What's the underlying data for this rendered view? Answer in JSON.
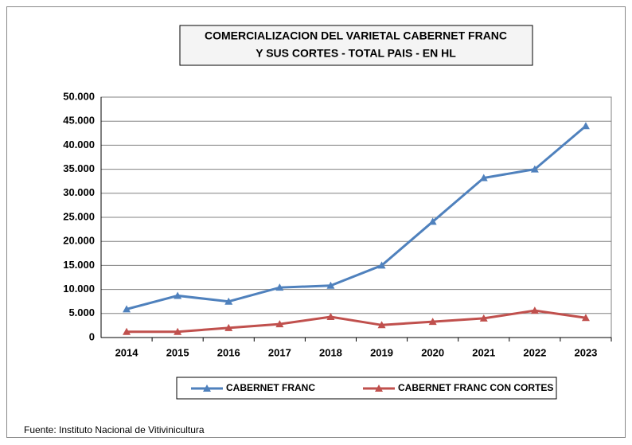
{
  "chart_data": {
    "type": "line",
    "title": [
      "COMERCIALIZACION DEL VARIETAL CABERNET FRANC",
      "Y SUS CORTES - TOTAL PAIS - EN HL"
    ],
    "categories": [
      "2014",
      "2015",
      "2016",
      "2017",
      "2018",
      "2019",
      "2020",
      "2021",
      "2022",
      "2023"
    ],
    "series": [
      {
        "name": "CABERNET FRANC",
        "color": "#4f81bd",
        "values": [
          5900,
          8700,
          7500,
          10400,
          10800,
          15000,
          24100,
          33200,
          35000,
          44000
        ]
      },
      {
        "name": "CABERNET FRANC CON CORTES",
        "color": "#c0504d",
        "values": [
          1200,
          1200,
          2000,
          2800,
          4300,
          2600,
          3300,
          4000,
          5600,
          4100
        ]
      }
    ],
    "ylim": [
      0,
      50000
    ],
    "yticks": [
      0,
      {
        "value": 5000,
        "label": "5.000"
      },
      {
        "value": 10000,
        "label": "10.000"
      },
      {
        "value": 15000,
        "label": "15.000"
      },
      {
        "value": 20000,
        "label": "20.000"
      },
      {
        "value": 25000,
        "label": "25.000"
      },
      {
        "value": 30000,
        "label": "30.000"
      },
      {
        "value": 35000,
        "label": "35.000"
      },
      {
        "value": 40000,
        "label": "40.000"
      },
      {
        "value": 45000,
        "label": "45.000"
      },
      {
        "value": 50000,
        "label": "50.000"
      }
    ],
    "grid": true,
    "legend": "bottom",
    "source": "Fuente: Instituto Nacional de Vitivinicultura"
  }
}
